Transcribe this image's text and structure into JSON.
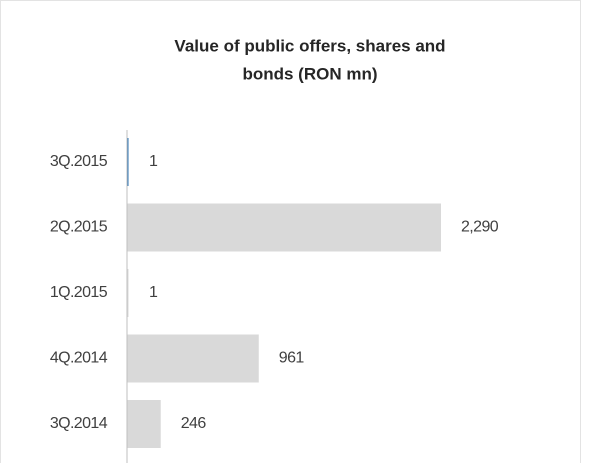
{
  "chart_data": {
    "type": "bar",
    "orientation": "horizontal",
    "title": "Value of public offers, shares and bonds (RON mn)",
    "title_lines": [
      "Value of public offers, shares and",
      "bonds (RON mn)"
    ],
    "categories": [
      "3Q.2015",
      "2Q.2015",
      "1Q.2015",
      "4Q.2014",
      "3Q.2014"
    ],
    "values": [
      1,
      2290,
      1,
      961,
      246
    ],
    "value_labels": [
      "1",
      "2,290",
      "1",
      "961",
      "246"
    ],
    "colors": [
      "#2e75b6",
      "#d9d9d9",
      "#d9d9d9",
      "#d9d9d9",
      "#d9d9d9"
    ]
  }
}
